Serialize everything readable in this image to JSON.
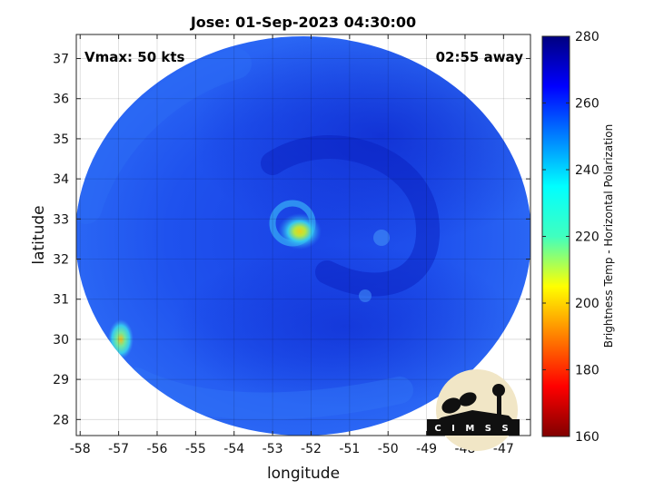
{
  "chart_data": {
    "type": "heatmap",
    "title": "Jose: 01-Sep-2023 04:30:00",
    "xlabel": "longitude",
    "ylabel": "latitude",
    "xlim": [
      -58.1,
      -46.3
    ],
    "ylim": [
      27.6,
      37.6
    ],
    "xticks": [
      -58,
      -57,
      -56,
      -55,
      -54,
      -53,
      -52,
      -51,
      -50,
      -49,
      -48,
      -47
    ],
    "yticks": [
      28,
      29,
      30,
      31,
      32,
      33,
      34,
      35,
      36,
      37
    ],
    "grid": true,
    "annotations": {
      "left": "Vmax: 50 kts",
      "right": "02:55 away"
    },
    "storm_center": {
      "lon": -52.35,
      "lat": 32.7
    },
    "cold_spots": [
      {
        "lon": -52.35,
        "lat": 32.7,
        "value": 212
      },
      {
        "lon": -57.0,
        "lat": 30.0,
        "value": 215
      }
    ],
    "background_value": 255,
    "colorbar": {
      "label": "Brightness Temp - Horizontal Polarization",
      "min": 160,
      "max": 280,
      "ticks": [
        160,
        180,
        200,
        220,
        240,
        260,
        280
      ],
      "colormap": "jet"
    }
  },
  "logo": {
    "text": "CIMSS"
  }
}
